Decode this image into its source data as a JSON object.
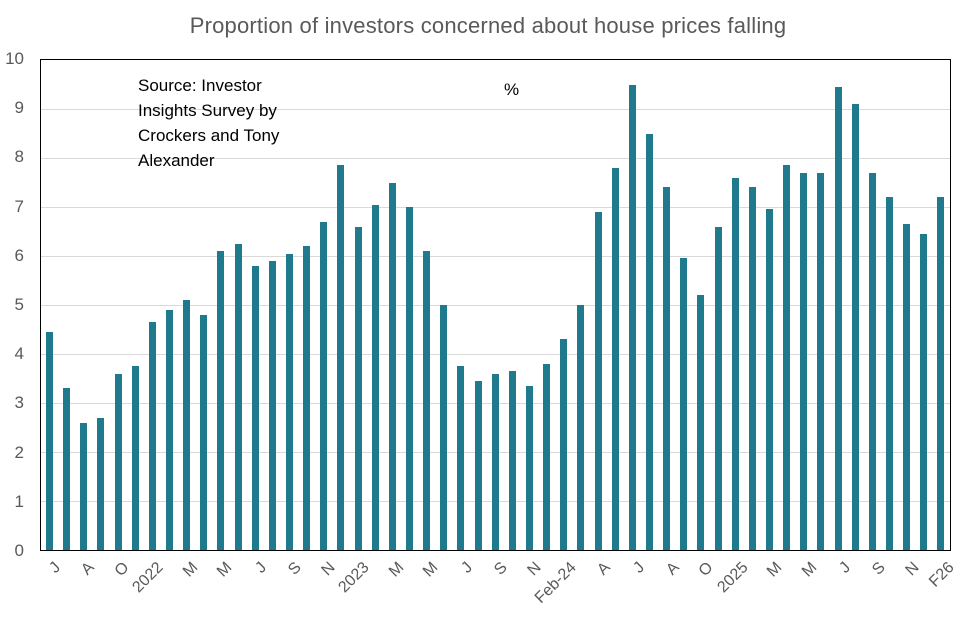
{
  "title": "Proportion of investors concerned about house prices falling",
  "unit_label": "%",
  "source_note": {
    "text": "Source: Investor Insights Survey by Crockers and Tony Alexander",
    "lines": [
      "Source: Investor",
      "Insights Survey by",
      "Crockers and Tony",
      "Alexander"
    ]
  },
  "colors": {
    "bar": "#1E7A8C",
    "title_text": "#595959",
    "tick_label_text": "#595959",
    "note_text": "#000000",
    "gridline": "#D9D9D9",
    "plot_border": "#000000",
    "background": "#FFFFFF"
  },
  "chart_data": {
    "type": "bar",
    "title": "Proportion of investors concerned about house prices falling",
    "annotation": "Source: Investor Insights Survey by Crockers and Tony Alexander",
    "unit_label": "%",
    "categories": [
      "J",
      "",
      "A",
      "",
      "O",
      "",
      "2022",
      "",
      "M",
      "",
      "M",
      "",
      "J",
      "",
      "S",
      "",
      "N",
      "",
      "2023",
      "",
      "M",
      "",
      "M",
      "",
      "J",
      "",
      "S",
      "",
      "N",
      "",
      "Feb-24",
      "",
      "A",
      "",
      "J",
      "",
      "A",
      "",
      "O",
      "",
      "2025",
      "",
      "M",
      "",
      "M",
      "",
      "J",
      "",
      "S",
      "",
      "N",
      "",
      "F26"
    ],
    "values": [
      4.45,
      3.3,
      2.6,
      2.7,
      3.6,
      3.75,
      4.65,
      4.9,
      5.1,
      4.8,
      6.1,
      6.25,
      5.8,
      5.9,
      6.05,
      6.2,
      6.7,
      7.85,
      6.6,
      7.05,
      7.5,
      7.0,
      6.1,
      5.0,
      3.75,
      3.45,
      3.6,
      3.65,
      3.35,
      3.8,
      4.3,
      5.0,
      6.9,
      7.8,
      9.5,
      8.5,
      7.4,
      5.95,
      5.2,
      6.6,
      7.6,
      7.4,
      6.95,
      7.85,
      7.7,
      7.7,
      9.45,
      9.1,
      7.7,
      7.2,
      6.65,
      6.45,
      7.2
    ],
    "xlabel": "",
    "ylabel": "%",
    "ylim": [
      0,
      10
    ],
    "yticks": [
      0,
      1,
      2,
      3,
      4,
      5,
      6,
      7,
      8,
      9,
      10
    ],
    "grid": "horizontal",
    "legend": "none",
    "xtick_rotation": 45,
    "bar_color": "#1E7A8C"
  }
}
